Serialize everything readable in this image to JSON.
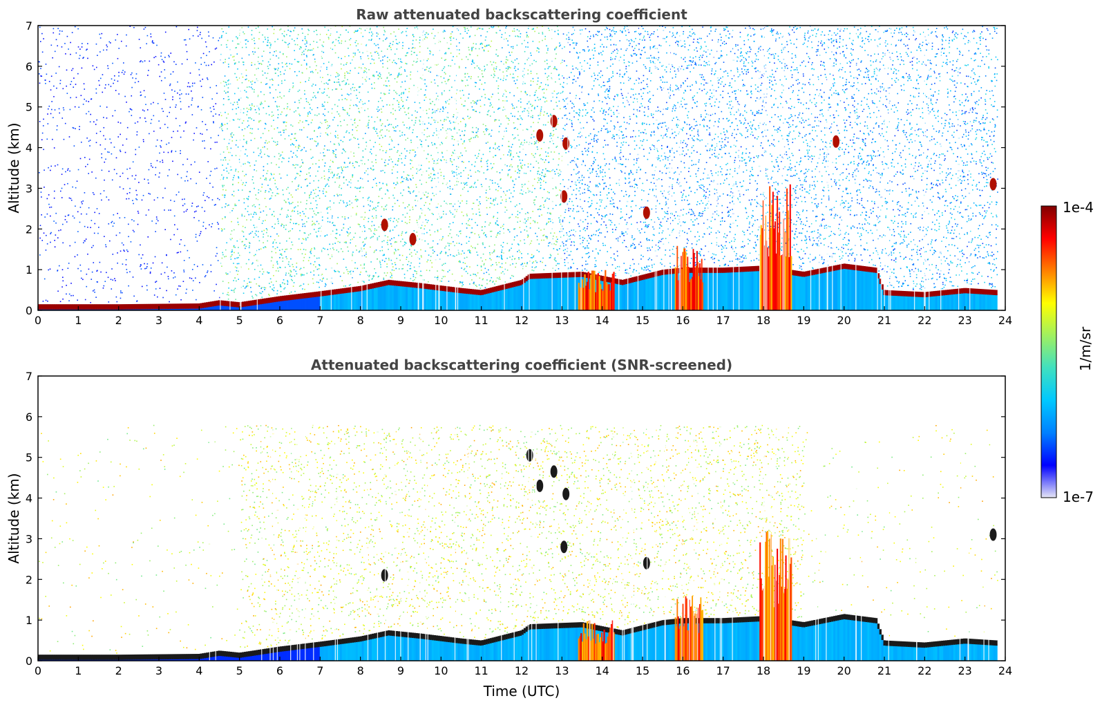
{
  "chart_data": [
    {
      "type": "heatmap",
      "title": "Raw attenuated backscattering coefficient",
      "xlabel": "",
      "ylabel": "Altitude (km)",
      "xlim": [
        0,
        24
      ],
      "ylim": [
        0,
        7
      ],
      "x_ticks": [
        "0",
        "1",
        "2",
        "3",
        "4",
        "5",
        "6",
        "7",
        "8",
        "9",
        "10",
        "11",
        "12",
        "13",
        "14",
        "15",
        "16",
        "17",
        "18",
        "19",
        "20",
        "21",
        "22",
        "23",
        "24"
      ],
      "y_ticks": [
        "0",
        "1",
        "2",
        "3",
        "4",
        "5",
        "6",
        "7"
      ],
      "screened": false,
      "boundary_layer_top_km": [
        [
          0,
          0.1
        ],
        [
          2,
          0.1
        ],
        [
          4,
          0.12
        ],
        [
          4.5,
          0.2
        ],
        [
          5,
          0.15
        ],
        [
          6,
          0.3
        ],
        [
          7,
          0.42
        ],
        [
          8,
          0.55
        ],
        [
          8.7,
          0.7
        ],
        [
          9.5,
          0.62
        ],
        [
          10.5,
          0.5
        ],
        [
          11,
          0.45
        ],
        [
          12,
          0.7
        ],
        [
          12.2,
          0.85
        ],
        [
          13.5,
          0.9
        ],
        [
          14.5,
          0.7
        ],
        [
          15.5,
          0.95
        ],
        [
          16,
          1.0
        ],
        [
          17,
          1.0
        ],
        [
          18,
          1.05
        ],
        [
          19,
          0.9
        ],
        [
          20,
          1.1
        ],
        [
          20.8,
          1.0
        ],
        [
          21,
          0.45
        ],
        [
          22,
          0.4
        ],
        [
          23,
          0.5
        ],
        [
          23.8,
          0.45
        ]
      ],
      "elevated_layers": [
        {
          "x_utc": 8.6,
          "altitude_km": 2.1
        },
        {
          "x_utc": 9.3,
          "altitude_km": 1.75
        },
        {
          "x_utc": 12.45,
          "altitude_km": 4.3
        },
        {
          "x_utc": 12.8,
          "altitude_km": 4.65
        },
        {
          "x_utc": 13.1,
          "altitude_km": 4.1
        },
        {
          "x_utc": 13.05,
          "altitude_km": 2.8
        },
        {
          "x_utc": 15.1,
          "altitude_km": 2.4
        },
        {
          "x_utc": 19.8,
          "altitude_km": 4.15
        },
        {
          "x_utc": 23.7,
          "altitude_km": 3.1
        }
      ],
      "convective_columns": [
        {
          "x_start_utc": 13.4,
          "x_end_utc": 14.3,
          "top_km": 1.0
        },
        {
          "x_start_utc": 15.8,
          "x_end_utc": 16.5,
          "top_km": 1.6
        },
        {
          "x_start_utc": 17.9,
          "x_end_utc": 18.7,
          "top_km": 3.2
        }
      ]
    },
    {
      "type": "heatmap",
      "title": "Attenuated backscattering coefficient (SNR-screened)",
      "xlabel": "Time (UTC)",
      "ylabel": "Altitude (km)",
      "xlim": [
        0,
        24
      ],
      "ylim": [
        0,
        7
      ],
      "x_ticks": [
        "0",
        "1",
        "2",
        "3",
        "4",
        "5",
        "6",
        "7",
        "8",
        "9",
        "10",
        "11",
        "12",
        "13",
        "14",
        "15",
        "16",
        "17",
        "18",
        "19",
        "20",
        "21",
        "22",
        "23",
        "24"
      ],
      "y_ticks": [
        "0",
        "1",
        "2",
        "3",
        "4",
        "5",
        "6",
        "7"
      ],
      "screened": true,
      "boundary_layer_top_km": [
        [
          0,
          0.1
        ],
        [
          2,
          0.1
        ],
        [
          4,
          0.12
        ],
        [
          4.5,
          0.2
        ],
        [
          5,
          0.15
        ],
        [
          6,
          0.3
        ],
        [
          7,
          0.42
        ],
        [
          8,
          0.55
        ],
        [
          8.7,
          0.7
        ],
        [
          9.5,
          0.62
        ],
        [
          10.5,
          0.5
        ],
        [
          11,
          0.45
        ],
        [
          12,
          0.7
        ],
        [
          12.2,
          0.85
        ],
        [
          13.5,
          0.9
        ],
        [
          14.5,
          0.7
        ],
        [
          15.5,
          0.95
        ],
        [
          16,
          1.0
        ],
        [
          17,
          1.0
        ],
        [
          18,
          1.05
        ],
        [
          19,
          0.9
        ],
        [
          20,
          1.1
        ],
        [
          20.8,
          1.0
        ],
        [
          21,
          0.45
        ],
        [
          22,
          0.4
        ],
        [
          23,
          0.5
        ],
        [
          23.8,
          0.45
        ]
      ],
      "elevated_layers": [
        {
          "x_utc": 8.6,
          "altitude_km": 2.1
        },
        {
          "x_utc": 12.2,
          "altitude_km": 5.05
        },
        {
          "x_utc": 12.45,
          "altitude_km": 4.3
        },
        {
          "x_utc": 12.8,
          "altitude_km": 4.65
        },
        {
          "x_utc": 13.1,
          "altitude_km": 4.1
        },
        {
          "x_utc": 13.05,
          "altitude_km": 2.8
        },
        {
          "x_utc": 15.1,
          "altitude_km": 2.4
        },
        {
          "x_utc": 23.7,
          "altitude_km": 3.1
        }
      ],
      "convective_columns": [
        {
          "x_start_utc": 13.4,
          "x_end_utc": 14.3,
          "top_km": 1.0
        },
        {
          "x_start_utc": 15.8,
          "x_end_utc": 16.5,
          "top_km": 1.6
        },
        {
          "x_start_utc": 17.9,
          "x_end_utc": 18.7,
          "top_km": 3.2
        }
      ]
    }
  ],
  "colorbar": {
    "label": "1/m/sr",
    "max_label": "1e-4",
    "min_label": "1e-7",
    "colormap": [
      "#e6e6f5",
      "#0000ff",
      "#0080ff",
      "#00c8ff",
      "#40e0c0",
      "#a0f060",
      "#ffff00",
      "#ff8000",
      "#ff0000",
      "#800000"
    ]
  }
}
